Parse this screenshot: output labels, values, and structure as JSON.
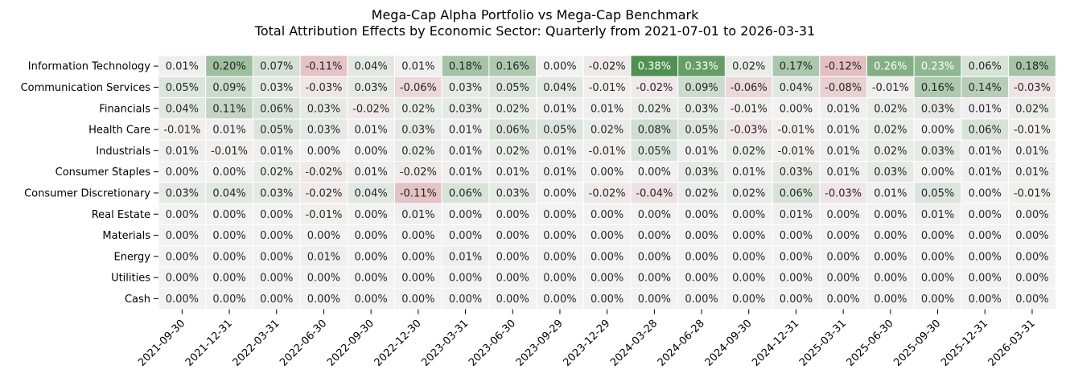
{
  "chart_data": {
    "type": "heatmap",
    "title": "Mega-Cap Alpha Portfolio vs Mega-Cap Benchmark",
    "subtitle": "Total Attribution Effects by Economic Sector: Quarterly from 2021-07-01 to 2026-03-31",
    "xlabel": "",
    "ylabel": "",
    "rows": [
      "Information Technology",
      "Communication Services",
      "Financials",
      "Health Care",
      "Industrials",
      "Consumer Staples",
      "Consumer Discretionary",
      "Real Estate",
      "Materials",
      "Energy",
      "Utilities",
      "Cash"
    ],
    "columns": [
      "2021-09-30",
      "2021-12-31",
      "2022-03-31",
      "2022-06-30",
      "2022-09-30",
      "2022-12-30",
      "2023-03-31",
      "2023-06-30",
      "2023-09-29",
      "2023-12-29",
      "2024-03-28",
      "2024-06-28",
      "2024-09-30",
      "2024-12-31",
      "2025-03-31",
      "2025-06-30",
      "2025-09-30",
      "2025-12-31",
      "2026-03-31"
    ],
    "values": [
      [
        0.01,
        0.2,
        0.07,
        -0.11,
        0.04,
        0.01,
        0.18,
        0.16,
        0.0,
        -0.02,
        0.38,
        0.33,
        0.02,
        0.17,
        -0.12,
        0.26,
        0.23,
        0.06,
        0.18
      ],
      [
        0.05,
        0.09,
        0.03,
        -0.03,
        0.03,
        -0.06,
        0.03,
        0.05,
        0.04,
        -0.01,
        -0.02,
        0.09,
        -0.06,
        0.04,
        -0.08,
        -0.01,
        0.16,
        0.14,
        -0.03
      ],
      [
        0.04,
        0.11,
        0.06,
        0.03,
        -0.02,
        0.02,
        0.03,
        0.02,
        0.01,
        0.01,
        0.02,
        0.03,
        -0.01,
        0.0,
        0.01,
        0.02,
        0.03,
        0.01,
        0.02
      ],
      [
        -0.01,
        0.01,
        0.05,
        0.03,
        0.01,
        0.03,
        0.01,
        0.06,
        0.05,
        0.02,
        0.08,
        0.05,
        -0.03,
        -0.01,
        0.01,
        0.02,
        0.0,
        0.06,
        -0.01
      ],
      [
        0.01,
        -0.01,
        0.01,
        0.0,
        0.0,
        0.02,
        0.01,
        0.02,
        0.01,
        -0.01,
        0.05,
        0.01,
        0.02,
        -0.01,
        0.01,
        0.02,
        0.03,
        0.01,
        0.01
      ],
      [
        0.0,
        0.0,
        0.02,
        -0.02,
        0.01,
        -0.02,
        0.01,
        0.01,
        0.01,
        0.0,
        0.0,
        0.03,
        0.01,
        0.03,
        0.01,
        0.03,
        0.0,
        0.01,
        0.01
      ],
      [
        0.03,
        0.04,
        0.03,
        -0.02,
        0.04,
        -0.11,
        0.06,
        0.03,
        0.0,
        -0.02,
        -0.04,
        0.02,
        0.02,
        0.06,
        -0.03,
        0.01,
        0.05,
        0.0,
        -0.01
      ],
      [
        0.0,
        0.0,
        0.0,
        -0.01,
        0.0,
        0.01,
        0.0,
        0.0,
        0.0,
        0.0,
        0.0,
        0.0,
        0.0,
        0.01,
        0.0,
        0.0,
        0.01,
        0.0,
        0.0
      ],
      [
        0.0,
        0.0,
        0.0,
        0.0,
        0.0,
        0.0,
        0.0,
        0.0,
        0.0,
        0.0,
        0.0,
        0.0,
        0.0,
        0.0,
        0.0,
        0.0,
        0.0,
        0.0,
        0.0
      ],
      [
        0.0,
        0.0,
        0.0,
        0.01,
        0.0,
        0.0,
        0.01,
        0.0,
        0.0,
        0.0,
        0.0,
        0.0,
        0.0,
        0.0,
        0.0,
        0.0,
        0.0,
        0.0,
        0.0
      ],
      [
        0.0,
        0.0,
        0.0,
        0.0,
        0.0,
        0.0,
        0.0,
        0.0,
        0.0,
        0.0,
        0.0,
        0.0,
        0.0,
        0.0,
        0.0,
        0.0,
        0.0,
        0.0,
        0.0
      ],
      [
        0.0,
        0.0,
        0.0,
        0.0,
        0.0,
        0.0,
        0.0,
        0.0,
        0.0,
        0.0,
        0.0,
        0.0,
        0.0,
        0.0,
        0.0,
        0.0,
        0.0,
        0.0,
        0.0
      ]
    ],
    "value_format": "percent, 2 decimals",
    "colorbar": false,
    "colors": {
      "positive_max": "#4e9150",
      "neutral": "#f2f2f2",
      "negative_max": "#c64f57",
      "scale_max": 0.38
    }
  }
}
